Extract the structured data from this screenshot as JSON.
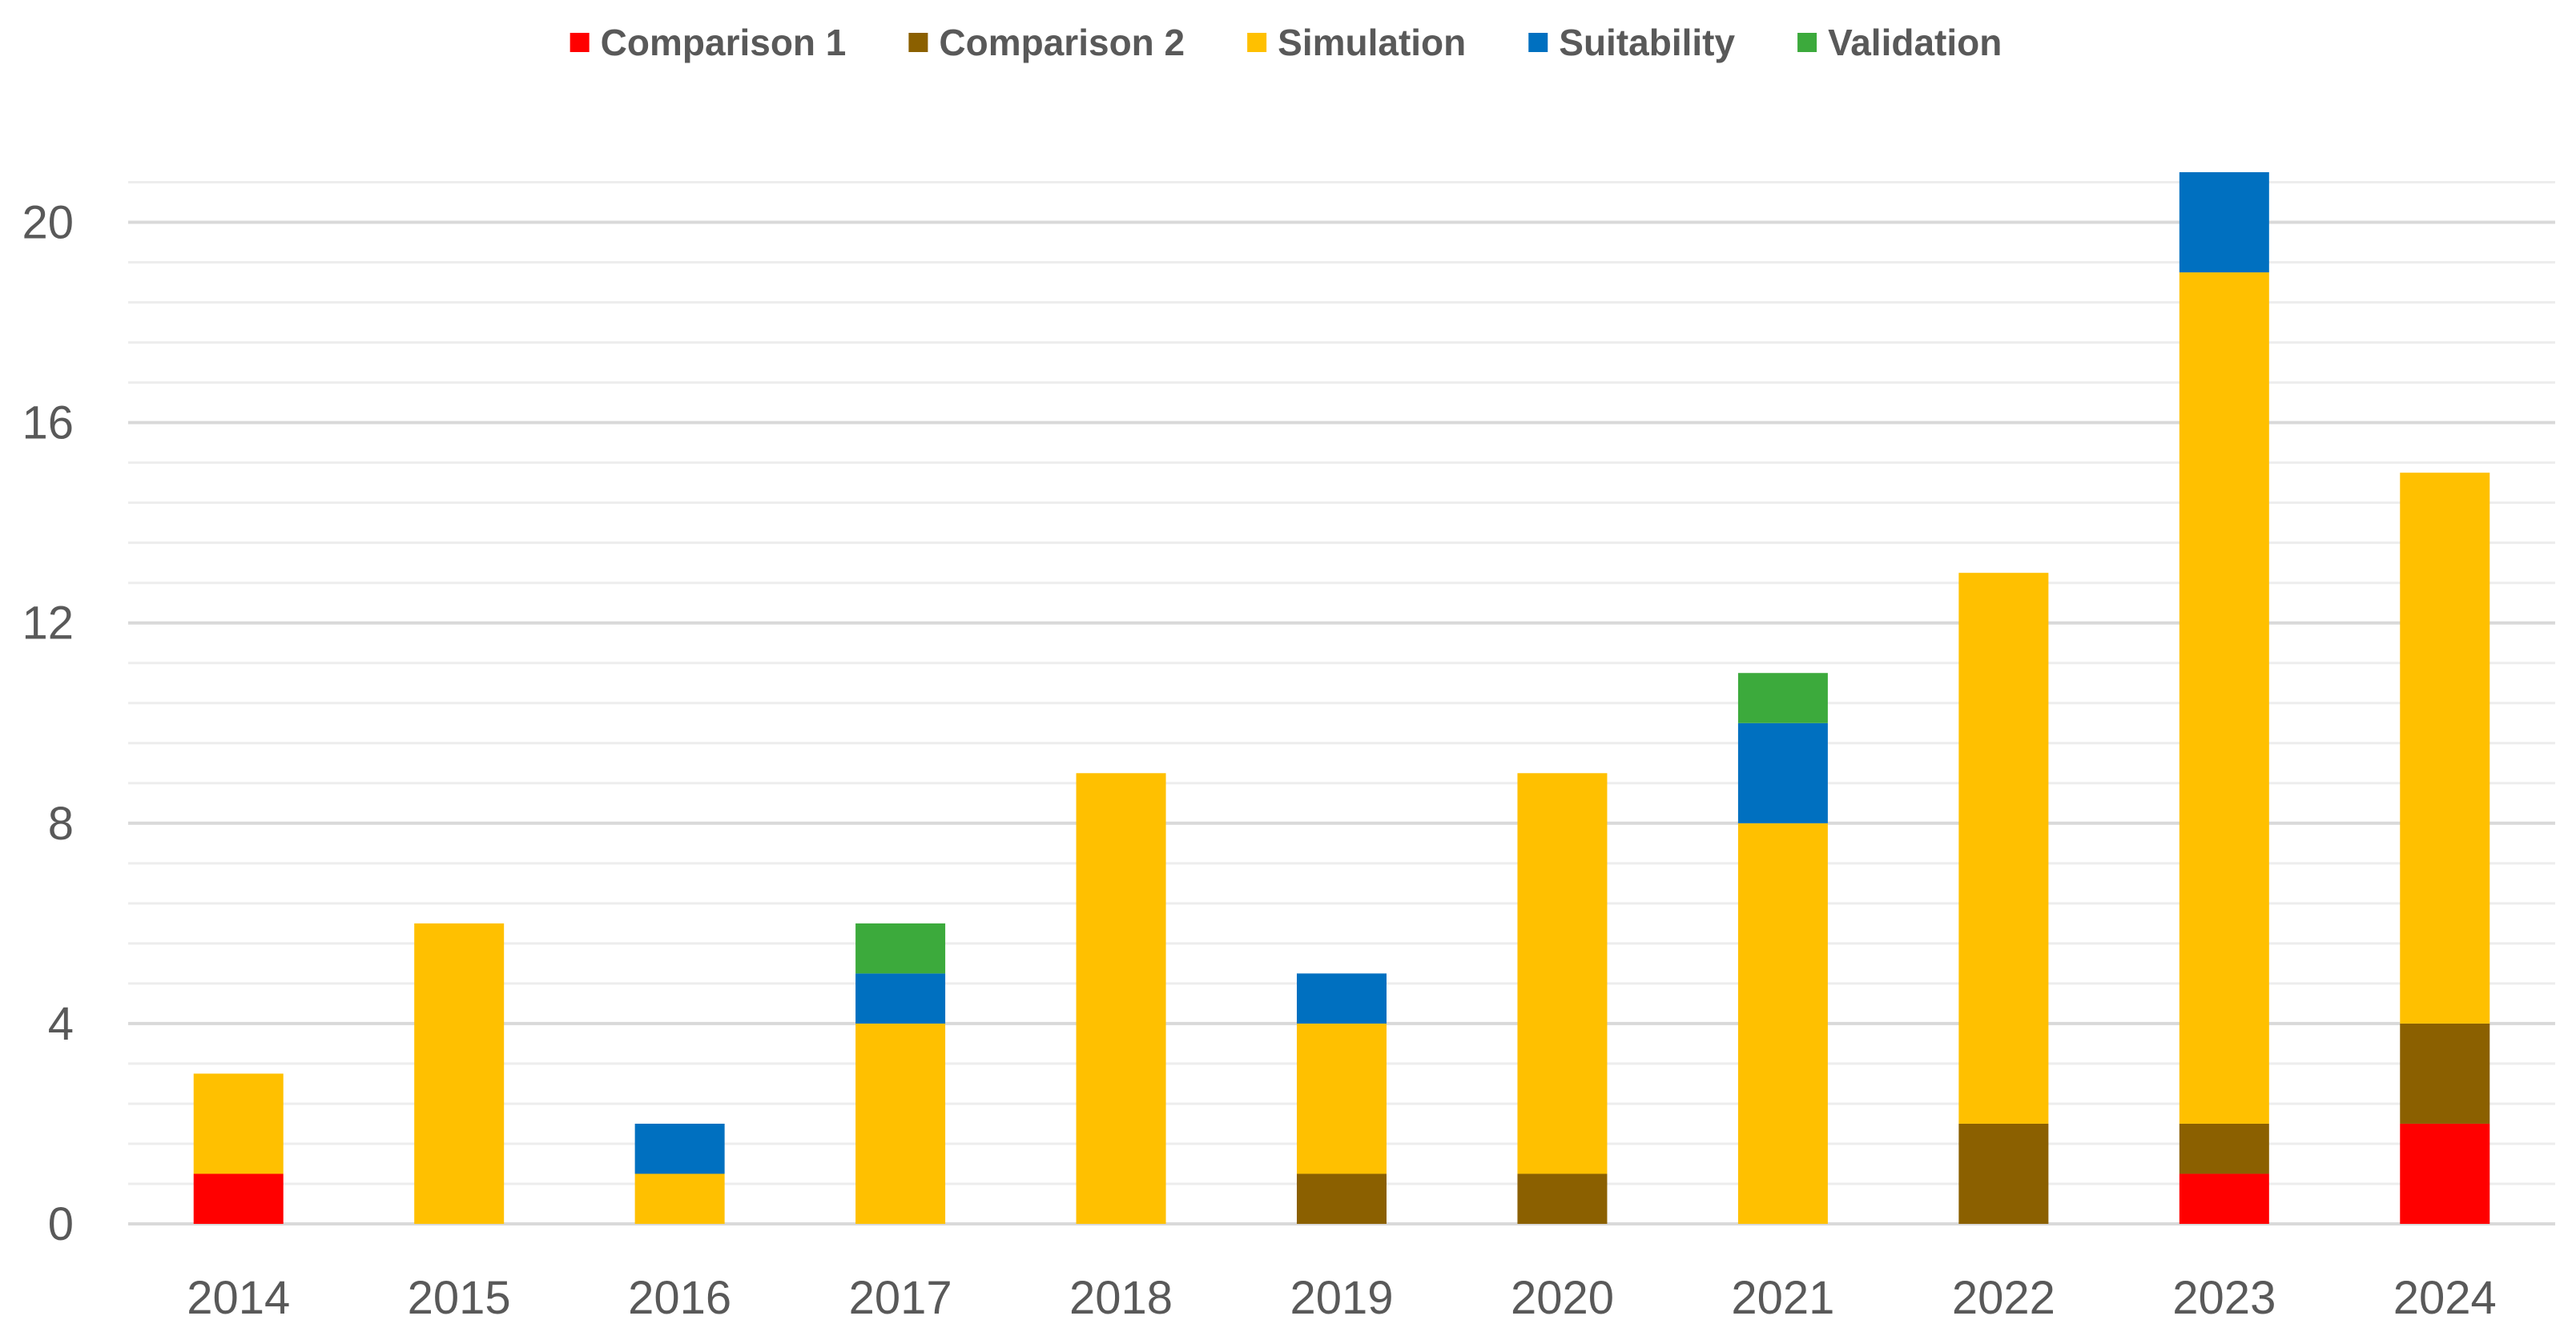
{
  "chart_data": {
    "type": "bar",
    "stacked": true,
    "title": "",
    "xlabel": "",
    "ylabel": "",
    "categories": [
      "2014",
      "2015",
      "2016",
      "2017",
      "2018",
      "2019",
      "2020",
      "2021",
      "2022",
      "2023",
      "2024"
    ],
    "series": [
      {
        "name": "Comparison 1",
        "color": "#FF0000",
        "values": [
          1,
          0,
          0,
          0,
          0,
          0,
          0,
          0,
          0,
          1,
          2
        ]
      },
      {
        "name": "Comparison 2",
        "color": "#8B6000",
        "values": [
          0,
          0,
          0,
          0,
          0,
          1,
          1,
          0,
          2,
          1,
          2
        ]
      },
      {
        "name": "Simulation",
        "color": "#FFC000",
        "values": [
          2,
          6,
          1,
          4,
          9,
          3,
          8,
          8,
          11,
          17,
          11
        ]
      },
      {
        "name": "Suitability",
        "color": "#0070C0",
        "values": [
          0,
          0,
          1,
          1,
          0,
          1,
          0,
          2,
          0,
          2,
          0
        ]
      },
      {
        "name": "Validation",
        "color": "#3CAA3C",
        "values": [
          0,
          0,
          0,
          1,
          0,
          0,
          0,
          1,
          0,
          0,
          0
        ]
      }
    ],
    "ylim": [
      0,
      21
    ],
    "major_ticks": [
      "0",
      "4",
      "8",
      "12",
      "16",
      "20"
    ],
    "minor_tick_step": 0.8,
    "grid": true,
    "legend_position": "top-center",
    "colors": {
      "major_grid": "#D9D9D9",
      "minor_grid": "#EDEDED",
      "axis_text": "#595959"
    }
  }
}
